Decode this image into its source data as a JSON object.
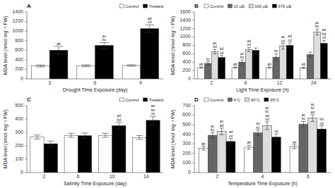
{
  "chart_data": [
    {
      "type": "bar",
      "title": "A",
      "x_label": "Drought Time Exposure (day)",
      "y_label": "MDA level (nmol mg⁻¹ FW)",
      "categories": [
        "3",
        "6",
        "9"
      ],
      "ylim": [
        0,
        1400
      ],
      "yticks": [
        0,
        200,
        400,
        600,
        800,
        1000,
        1200,
        1400
      ],
      "legend": "upper right",
      "series": [
        {
          "name": "Control",
          "color": "white",
          "values": [
            270,
            275,
            280
          ],
          "errors": [
            20,
            20,
            15
          ]
        },
        {
          "name": "Treated",
          "color": "black",
          "values": [
            600,
            700,
            1050
          ],
          "errors": [
            80,
            60,
            80
          ],
          "annotations": [
            "ab",
            "ac\nbc",
            "ad\ncd"
          ]
        }
      ]
    },
    {
      "type": "bar",
      "title": "B",
      "x_label": "Light Time Exposure (h)",
      "y_label": "MDA level (nmol mg⁻¹ FW)",
      "categories": [
        "2",
        "6",
        "12",
        "24"
      ],
      "ylim": [
        0,
        1600
      ],
      "yticks": [
        0,
        200,
        400,
        600,
        800,
        1000,
        1200,
        1400,
        1600
      ],
      "legend": "upper left",
      "series": [
        {
          "name": "Control",
          "color": "white",
          "values": [
            270,
            270,
            270,
            265
          ],
          "errors": [
            15,
            15,
            15,
            15
          ],
          "annotations": [
            "ab",
            "ab",
            "ab",
            "ab"
          ]
        },
        {
          "name": "10 μE",
          "color": "#666666",
          "values": [
            370,
            400,
            520,
            580
          ],
          "errors": [
            40,
            50,
            80,
            60
          ],
          "annotations": [
            "bc",
            "ac\nbc",
            "bc",
            null
          ]
        },
        {
          "name": "100 μE",
          "color": "#dddddd",
          "values": [
            650,
            700,
            780,
            1120
          ],
          "errors": [
            50,
            50,
            70,
            70
          ],
          "annotations": [
            "ac\nbd",
            "ad\ncd",
            "ac\ncd",
            "ac\nbc"
          ]
        },
        {
          "name": "370 μE",
          "color": "black",
          "values": [
            510,
            680,
            800,
            850
          ],
          "errors": [
            50,
            60,
            60,
            70
          ],
          "annotations": [
            "bd\ncd",
            null,
            "ad\ncd",
            "ad\nbd\ncd"
          ]
        }
      ]
    },
    {
      "type": "bar",
      "title": "C",
      "x_label": "Salinity Time Exposure (day)",
      "y_label": "MDA level (nmol mg⁻¹ FW)",
      "categories": [
        "2",
        "6",
        "10",
        "14"
      ],
      "ylim": [
        0,
        500
      ],
      "yticks": [
        0,
        100,
        200,
        300,
        400,
        500
      ],
      "legend": "upper right",
      "series": [
        {
          "name": "Control",
          "color": "white",
          "values": [
            265,
            278,
            278,
            262
          ],
          "errors": [
            15,
            15,
            15,
            15
          ]
        },
        {
          "name": "Treated",
          "color": "black",
          "values": [
            215,
            275,
            350,
            390
          ],
          "errors": [
            20,
            20,
            25,
            30
          ],
          "annotations": [
            null,
            null,
            "ad\nbd",
            "ae\nbe\nce"
          ]
        }
      ]
    },
    {
      "type": "bar",
      "title": "D",
      "x_label": "Temperature Time Exposure (h)",
      "y_label": "MDA level (nmol mg⁻¹ FW)",
      "categories": [
        "2",
        "4",
        "6"
      ],
      "ylim": [
        0,
        700
      ],
      "yticks": [
        0,
        100,
        200,
        300,
        400,
        500,
        600,
        700
      ],
      "legend": "upper left",
      "series": [
        {
          "name": "Control",
          "color": "white",
          "values": [
            255,
            265,
            270
          ],
          "errors": [
            20,
            20,
            20
          ],
          "annotations": [
            "ab",
            "ab",
            "ab"
          ]
        },
        {
          "name": "4°C",
          "color": "#666666",
          "values": [
            390,
            415,
            505
          ],
          "errors": [
            30,
            30,
            30
          ],
          "annotations": [
            "ac\nbc",
            "ac\nbc",
            "ac\nbc"
          ]
        },
        {
          "name": "30°C",
          "color": "#dddddd",
          "values": [
            430,
            490,
            570
          ],
          "errors": [
            35,
            40,
            35
          ],
          "annotations": [
            "ac\nad",
            "ac\nbc\nad\ncd",
            "ac\nbc\nad"
          ]
        },
        {
          "name": "35°C",
          "color": "black",
          "values": [
            325,
            370,
            455
          ],
          "errors": [
            30,
            35,
            35
          ],
          "annotations": [
            "ad\ncd",
            "cd",
            "bd\ncd"
          ]
        }
      ]
    }
  ]
}
